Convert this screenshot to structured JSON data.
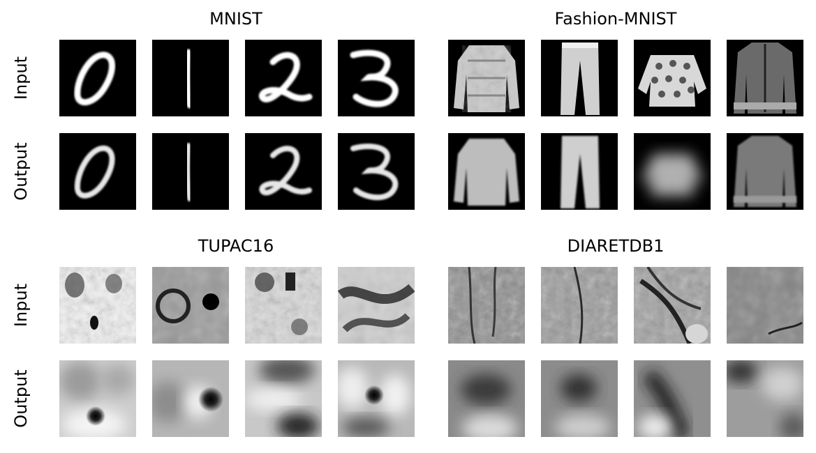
{
  "panels": [
    {
      "title": "MNIST",
      "rows": [
        {
          "label": "Input",
          "images": [
            "digit-0",
            "digit-1",
            "digit-2",
            "digit-3"
          ]
        },
        {
          "label": "Output",
          "images": [
            "digit-0",
            "digit-1",
            "digit-2",
            "digit-3"
          ]
        }
      ]
    },
    {
      "title": "Fashion-MNIST",
      "rows": [
        {
          "label": "",
          "images": [
            "shirt",
            "trousers",
            "pullover",
            "coat"
          ]
        },
        {
          "label": "",
          "images": [
            "shirt",
            "trousers",
            "pullover",
            "coat"
          ]
        }
      ]
    },
    {
      "title": "TUPAC16",
      "rows": [
        {
          "label": "Input",
          "images": [
            "histology-patch",
            "histology-patch",
            "histology-patch",
            "histology-patch"
          ]
        },
        {
          "label": "Output",
          "images": [
            "blurred-patch",
            "blurred-patch",
            "blurred-patch",
            "blurred-patch"
          ]
        }
      ]
    },
    {
      "title": "DIARETDB1",
      "rows": [
        {
          "label": "",
          "images": [
            "retina-patch",
            "retina-patch",
            "retina-patch",
            "retina-patch"
          ]
        },
        {
          "label": "",
          "images": [
            "blurred-retina",
            "blurred-retina",
            "blurred-retina",
            "blurred-retina"
          ]
        }
      ]
    }
  ]
}
